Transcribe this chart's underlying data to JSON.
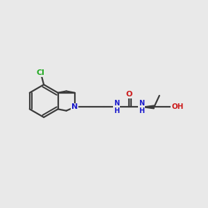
{
  "background_color": "#e9e9e9",
  "bond_color": "#3a3a3a",
  "bond_width": 1.6,
  "atom_colors": {
    "N": "#1a1acc",
    "O": "#cc1a1a",
    "Cl": "#22aa22",
    "H": "#555555"
  },
  "figsize": [
    3.0,
    3.0
  ],
  "dpi": 100
}
